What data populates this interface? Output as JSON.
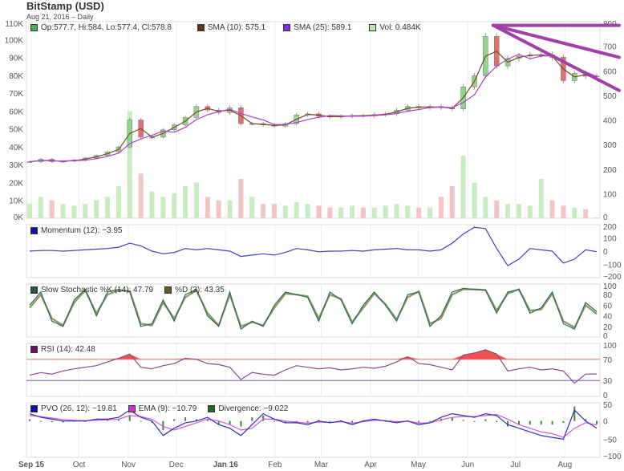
{
  "header": {
    "title": "BitStamp (USD)",
    "subtitle": "Aug 21, 2016 – Daily"
  },
  "legends": {
    "main": [
      {
        "label": "Op:577.7, Hi:584, Lo:577.4, Cl:578.8",
        "color": "#4caf50"
      },
      {
        "label": "SMA (10): 575.1",
        "color": "#5a3a1a"
      },
      {
        "label": "SMA (25): 589.1",
        "color": "#8a2be2"
      },
      {
        "label": "Vol: 0.484K",
        "color": "#b9e8b0"
      }
    ],
    "momentum": [
      {
        "label": "Momentum (12): −3.95",
        "color": "#1010b0"
      }
    ],
    "stochastic": [
      {
        "label": "Slow Stochastic %K (14): 47.79",
        "color": "#1f5a4a"
      },
      {
        "label": "%D (3): 43.35",
        "color": "#6b5a20"
      }
    ],
    "rsi": [
      {
        "label": "RSI (14): 42.48",
        "color": "#6a1060"
      }
    ],
    "pvo": [
      {
        "label": "PVO (26, 12): −19.81",
        "color": "#1010b0"
      },
      {
        "label": "EMA (9): −10.79",
        "color": "#cc33cc"
      },
      {
        "label": "Divergence: −9.022",
        "color": "#1e6b1e"
      }
    ]
  },
  "chart_data": {
    "type": "candlestick",
    "x_range": [
      "2015-08-31",
      "2016-08-21"
    ],
    "x_tick_labels": [
      "Sep 15",
      "Oct",
      "Nov",
      "Dec",
      "Jan 16",
      "Feb",
      "Mar",
      "Apr",
      "May",
      "Jun",
      "Jul",
      "Aug"
    ],
    "x_tick_dates": [
      "2015-09-01",
      "2015-10-01",
      "2015-11-01",
      "2015-12-01",
      "2016-01-01",
      "2016-02-01",
      "2016-03-01",
      "2016-04-01",
      "2016-05-01",
      "2016-06-01",
      "2016-07-01",
      "2016-08-01"
    ],
    "price": {
      "ylim": [
        0,
        800
      ],
      "y_ticks": [
        "800",
        "700",
        "600",
        "500",
        "400",
        "300",
        "200",
        "100",
        "0"
      ],
      "close": [
        230,
        240,
        230,
        232,
        237,
        245,
        255,
        270,
        290,
        400,
        330,
        330,
        360,
        380,
        410,
        455,
        440,
        430,
        450,
        385,
        385,
        380,
        375,
        385,
        420,
        425,
        415,
        412,
        415,
        418,
        417,
        422,
        425,
        440,
        455,
        450,
        455,
        450,
        445,
        535,
        580,
        740,
        620,
        650,
        660,
        665,
        665,
        655,
        560,
        590,
        578,
        578.8
      ],
      "sma_periods": [
        10,
        25
      ]
    },
    "volume": {
      "ylim": [
        0,
        110
      ],
      "y_ticks": [
        "110K",
        "100K",
        "90K",
        "80K",
        "70K",
        "60K",
        "50K",
        "40K",
        "30K",
        "20K",
        "10K",
        "0K"
      ],
      "values": [
        8,
        12,
        10,
        8,
        7,
        8,
        10,
        12,
        18,
        60,
        25,
        15,
        12,
        14,
        18,
        20,
        12,
        10,
        10,
        22,
        12,
        8,
        8,
        7,
        9,
        8,
        7,
        6,
        6,
        7,
        6,
        6,
        7,
        8,
        7,
        6,
        6,
        12,
        18,
        35,
        20,
        12,
        10,
        8,
        8,
        7,
        22,
        10,
        7,
        6,
        5,
        0.484
      ]
    },
    "annotations": {
      "trendlines": [
        {
          "from": [
            "2016-06-17",
            785
          ],
          "to": [
            "2016-08-21",
            785
          ]
        },
        {
          "from": [
            "2016-06-17",
            785
          ],
          "to": [
            "2016-08-21",
            655
          ]
        },
        {
          "from": [
            "2016-06-17",
            785
          ],
          "to": [
            "2016-08-21",
            520
          ]
        }
      ],
      "color": "#a040a8"
    },
    "momentum": {
      "ylim": [
        -200,
        200
      ],
      "y_ticks": [
        "200",
        "100",
        "0",
        "−100",
        "−200"
      ],
      "values": [
        0,
        5,
        5,
        0,
        5,
        10,
        15,
        20,
        30,
        60,
        40,
        0,
        -20,
        -10,
        20,
        10,
        20,
        10,
        0,
        -40,
        -30,
        -20,
        -30,
        -10,
        20,
        10,
        -5,
        0,
        0,
        5,
        0,
        10,
        15,
        20,
        10,
        10,
        0,
        10,
        60,
        130,
        180,
        170,
        20,
        -110,
        -60,
        20,
        10,
        0,
        -90,
        -60,
        10,
        -3.95
      ]
    },
    "stochastic": {
      "ylim": [
        0,
        100
      ],
      "y_ticks": [
        "100",
        "80",
        "60",
        "40",
        "20",
        "0"
      ],
      "k": [
        60,
        85,
        30,
        20,
        70,
        90,
        40,
        85,
        90,
        85,
        20,
        25,
        70,
        30,
        80,
        90,
        40,
        20,
        85,
        15,
        30,
        20,
        60,
        85,
        80,
        75,
        30,
        85,
        70,
        25,
        60,
        85,
        60,
        30,
        80,
        85,
        20,
        40,
        85,
        92,
        90,
        88,
        45,
        85,
        90,
        45,
        55,
        85,
        25,
        15,
        65,
        47.79
      ],
      "d": [
        55,
        80,
        35,
        22,
        65,
        88,
        45,
        80,
        88,
        87,
        25,
        22,
        65,
        35,
        75,
        88,
        45,
        22,
        80,
        20,
        28,
        22,
        55,
        82,
        80,
        77,
        35,
        80,
        72,
        28,
        55,
        82,
        62,
        33,
        75,
        86,
        25,
        35,
        80,
        90,
        90,
        89,
        50,
        82,
        90,
        50,
        52,
        82,
        30,
        18,
        60,
        43.35
      ]
    },
    "rsi": {
      "ylim": [
        0,
        100
      ],
      "y_ticks": [
        "100",
        "70",
        "30",
        "0"
      ],
      "overbought": 70,
      "oversold": 30,
      "values": [
        40,
        45,
        42,
        48,
        52,
        55,
        58,
        65,
        72,
        80,
        55,
        52,
        58,
        62,
        72,
        70,
        62,
        60,
        55,
        32,
        45,
        42,
        40,
        50,
        58,
        55,
        52,
        54,
        50,
        52,
        55,
        53,
        57,
        65,
        75,
        62,
        60,
        55,
        50,
        78,
        82,
        88,
        80,
        48,
        52,
        55,
        50,
        52,
        48,
        25,
        42,
        42.48
      ]
    },
    "pvo": {
      "ylim": [
        -100,
        50
      ],
      "y_ticks": [
        "50",
        "0",
        "−50",
        "−100"
      ],
      "pvo": [
        20,
        10,
        5,
        0,
        0,
        0,
        5,
        5,
        10,
        30,
        10,
        0,
        -40,
        -20,
        -5,
        0,
        10,
        -10,
        -20,
        -40,
        -10,
        20,
        5,
        -5,
        -5,
        -10,
        0,
        -5,
        0,
        -10,
        0,
        5,
        0,
        -5,
        0,
        -10,
        -5,
        10,
        20,
        15,
        10,
        20,
        15,
        -10,
        -20,
        -30,
        -40,
        -45,
        -50,
        30,
        0,
        -19.81
      ],
      "ema": [
        15,
        12,
        8,
        4,
        2,
        1,
        2,
        3,
        5,
        15,
        12,
        5,
        -15,
        -25,
        -15,
        -5,
        5,
        0,
        -10,
        -25,
        -20,
        5,
        5,
        0,
        -3,
        -6,
        -3,
        -4,
        -2,
        -6,
        -2,
        2,
        1,
        -2,
        0,
        -6,
        -5,
        3,
        10,
        12,
        12,
        15,
        18,
        5,
        -10,
        -20,
        -30,
        -35,
        -45,
        -20,
        -5,
        -10.79
      ],
      "divergence": [
        5,
        -2,
        -3,
        -4,
        -2,
        -1,
        3,
        2,
        5,
        15,
        -2,
        -5,
        -25,
        5,
        10,
        5,
        5,
        -10,
        -10,
        -15,
        10,
        15,
        0,
        -5,
        -2,
        -4,
        3,
        -1,
        2,
        -4,
        2,
        3,
        -1,
        -3,
        0,
        -4,
        0,
        7,
        10,
        3,
        -2,
        5,
        -3,
        -15,
        -10,
        -10,
        -10,
        -10,
        -5,
        40,
        5,
        -9.022
      ]
    }
  }
}
